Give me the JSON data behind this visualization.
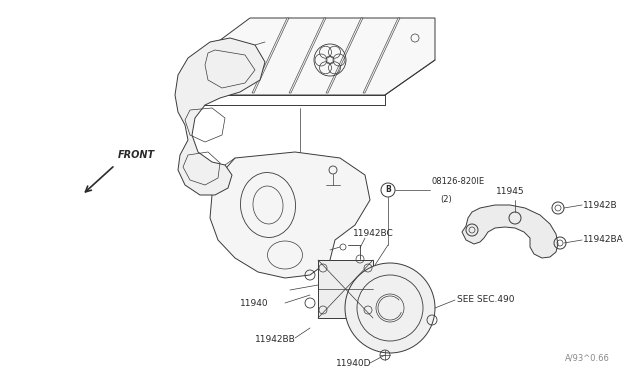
{
  "bg_color": "#ffffff",
  "line_color": "#3a3a3a",
  "text_color": "#2a2a2a",
  "fig_width": 6.4,
  "fig_height": 3.72,
  "dpi": 100,
  "watermark": "A/93^0.66",
  "labels": {
    "front": "FRONT",
    "b_circle": "B",
    "b_bolt_1": "08126-820IE",
    "b_bolt_2": "(2)",
    "p11940": "11940",
    "p11940D": "11940D",
    "p11942BC": "11942BC",
    "p11942BB": "11942BB",
    "p11942B": "11942B",
    "p11942BA": "11942BA",
    "p11945": "11945",
    "see_sec": "SEE SEC.490"
  }
}
